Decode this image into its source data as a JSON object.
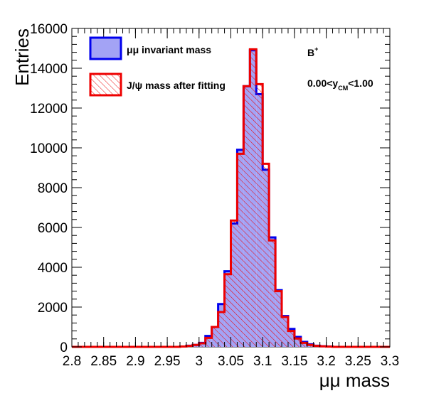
{
  "chart_data": {
    "type": "histogram",
    "xlabel": "μμ mass",
    "ylabel": "Entries",
    "xlim": [
      2.8,
      3.3
    ],
    "ylim": [
      0,
      16000
    ],
    "xticks": [
      2.8,
      2.85,
      2.9,
      2.95,
      3.0,
      3.05,
      3.1,
      3.15,
      3.2,
      3.25,
      3.3
    ],
    "xtick_labels": [
      "2.8",
      "2.85",
      "2.9",
      "2.95",
      "3",
      "3.05",
      "3.1",
      "3.15",
      "3.2",
      "3.25",
      "3.3"
    ],
    "yticks": [
      0,
      2000,
      4000,
      6000,
      8000,
      10000,
      12000,
      14000,
      16000
    ],
    "ytick_labels": [
      "0",
      "2000",
      "4000",
      "6000",
      "8000",
      "10000",
      "12000",
      "14000",
      "16000"
    ],
    "bin_edges_start": 2.8,
    "bin_width": 0.01,
    "series": [
      {
        "name": "μμ invariant mass",
        "fill": "#a3a3f5",
        "line": "#0000ee",
        "style": "solid",
        "values": [
          0,
          0,
          0,
          0,
          0,
          0,
          0,
          0,
          0,
          0,
          0,
          0,
          0,
          0,
          0,
          0,
          0,
          20,
          60,
          100,
          200,
          550,
          1000,
          2150,
          3800,
          6200,
          9900,
          13100,
          14900,
          12700,
          8900,
          5500,
          2850,
          1550,
          900,
          500,
          250,
          130,
          60,
          30,
          20,
          0,
          0,
          0,
          0,
          0,
          0,
          0,
          0,
          0
        ]
      },
      {
        "name": "J/ψ mass after fitting",
        "fill": "none",
        "line": "#ee0000",
        "style": "hatched",
        "values": [
          0,
          0,
          0,
          0,
          0,
          0,
          0,
          0,
          0,
          0,
          0,
          0,
          0,
          0,
          0,
          0,
          0,
          20,
          50,
          100,
          180,
          450,
          1000,
          1750,
          3650,
          6350,
          9700,
          13100,
          14950,
          13200,
          9200,
          5350,
          2800,
          1500,
          800,
          420,
          200,
          100,
          50,
          25,
          15,
          0,
          0,
          0,
          0,
          0,
          0,
          0,
          0,
          0
        ]
      }
    ],
    "annotations": [
      "B⁺",
      "0.00<y_CM<1.00"
    ],
    "legend_position": "top-left"
  },
  "labels": {
    "annot_b": "B",
    "annot_b_sup": "+",
    "annot_y_pre": "0.00<y",
    "annot_y_sub": "CM",
    "annot_y_post": "<1.00"
  }
}
